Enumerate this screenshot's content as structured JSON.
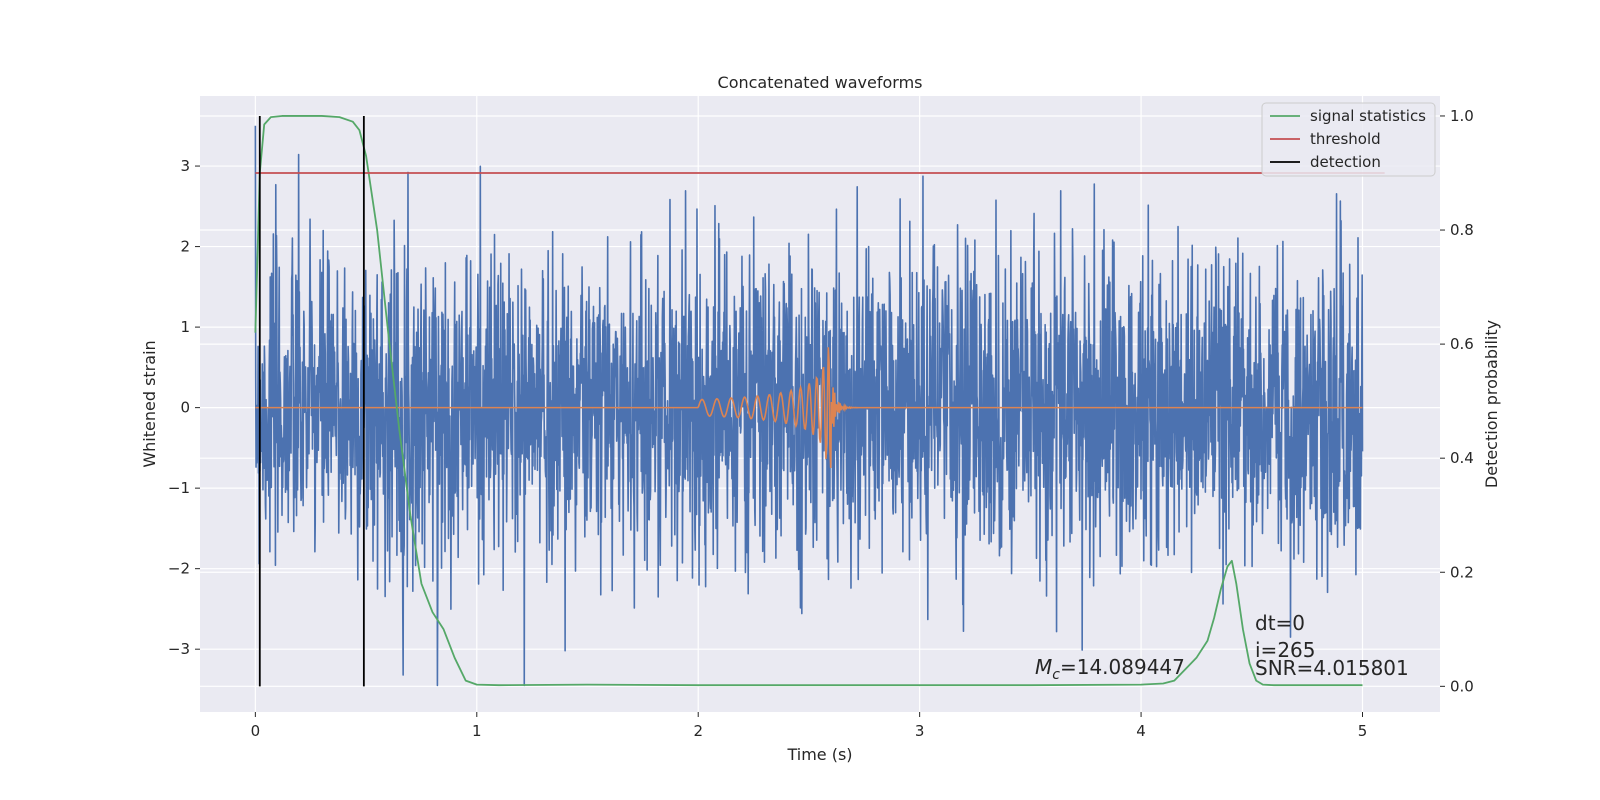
{
  "chart_data": {
    "type": "line",
    "title": "Concatenated waveforms",
    "xlabel": "Time (s)",
    "ylabel_left": "Whitened strain",
    "ylabel_right": "Detection probability",
    "xlim": [
      -0.25,
      5.35
    ],
    "ylim_left": [
      -3.78,
      3.87
    ],
    "ylim_right": [
      -0.045,
      1.035
    ],
    "x_ticks": [
      0,
      1,
      2,
      3,
      4,
      5
    ],
    "x_tick_labels": [
      "0",
      "1",
      "2",
      "3",
      "4",
      "5"
    ],
    "y_left_ticks": [
      -3,
      -2,
      -1,
      0,
      1,
      2,
      3
    ],
    "y_left_tick_labels": [
      "−3",
      "−2",
      "−1",
      "0",
      "1",
      "2",
      "3"
    ],
    "y_right_ticks": [
      0.0,
      0.2,
      0.4,
      0.6,
      0.8,
      1.0
    ],
    "y_right_tick_labels": [
      "0.0",
      "0.2",
      "0.4",
      "0.6",
      "0.8",
      "1.0"
    ],
    "grid": true,
    "legend_position": "top-right",
    "colors": {
      "strain": "#4c72b0",
      "waveform": "#dd8452",
      "signal_statistics": "#55a868",
      "threshold": "#c44e52",
      "detection": "#000000",
      "axes_bg": "#eaeaf2",
      "grid": "#ffffff"
    },
    "series": [
      {
        "name": "signal statistics",
        "axis": "right",
        "x": [
          0,
          0.02,
          0.04,
          0.07,
          0.12,
          0.2,
          0.3,
          0.38,
          0.44,
          0.47,
          0.5,
          0.55,
          0.6,
          0.65,
          0.7,
          0.75,
          0.8,
          0.85,
          0.9,
          0.95,
          1.0,
          1.1,
          1.5,
          2.0,
          2.5,
          3.0,
          3.5,
          4.0,
          4.1,
          4.15,
          4.2,
          4.25,
          4.3,
          4.33,
          4.36,
          4.39,
          4.41,
          4.43,
          4.46,
          4.49,
          4.52,
          4.55,
          4.6,
          4.8,
          5.0
        ],
        "y": [
          0.62,
          0.9,
          0.985,
          0.998,
          1.0,
          1.0,
          1.0,
          0.998,
          0.99,
          0.975,
          0.93,
          0.8,
          0.62,
          0.45,
          0.3,
          0.18,
          0.13,
          0.1,
          0.05,
          0.01,
          0.003,
          0.002,
          0.003,
          0.002,
          0.002,
          0.002,
          0.002,
          0.003,
          0.005,
          0.01,
          0.03,
          0.05,
          0.08,
          0.12,
          0.17,
          0.21,
          0.22,
          0.18,
          0.1,
          0.04,
          0.01,
          0.003,
          0.002,
          0.002,
          0.002
        ]
      },
      {
        "name": "threshold",
        "axis": "right",
        "x": [
          0,
          5.1
        ],
        "y": [
          0.9,
          0.9
        ]
      },
      {
        "name": "detection",
        "axis": "right",
        "vlines": [
          0.02,
          0.49
        ],
        "ymin": 0.0,
        "ymax": 1.0
      }
    ],
    "annotations": [
      "$M_c$=14.089447",
      "dt=0",
      "i=265",
      "SNR=4.015801"
    ]
  },
  "legend": {
    "signal_statistics": "signal statistics",
    "threshold": "threshold",
    "detection": "detection"
  },
  "annotations": {
    "mc_symbol": "M",
    "mc_sub": "c",
    "mc_value": "=14.089447",
    "dt": "dt=0",
    "i": "i=265",
    "snr": "SNR=4.015801"
  }
}
